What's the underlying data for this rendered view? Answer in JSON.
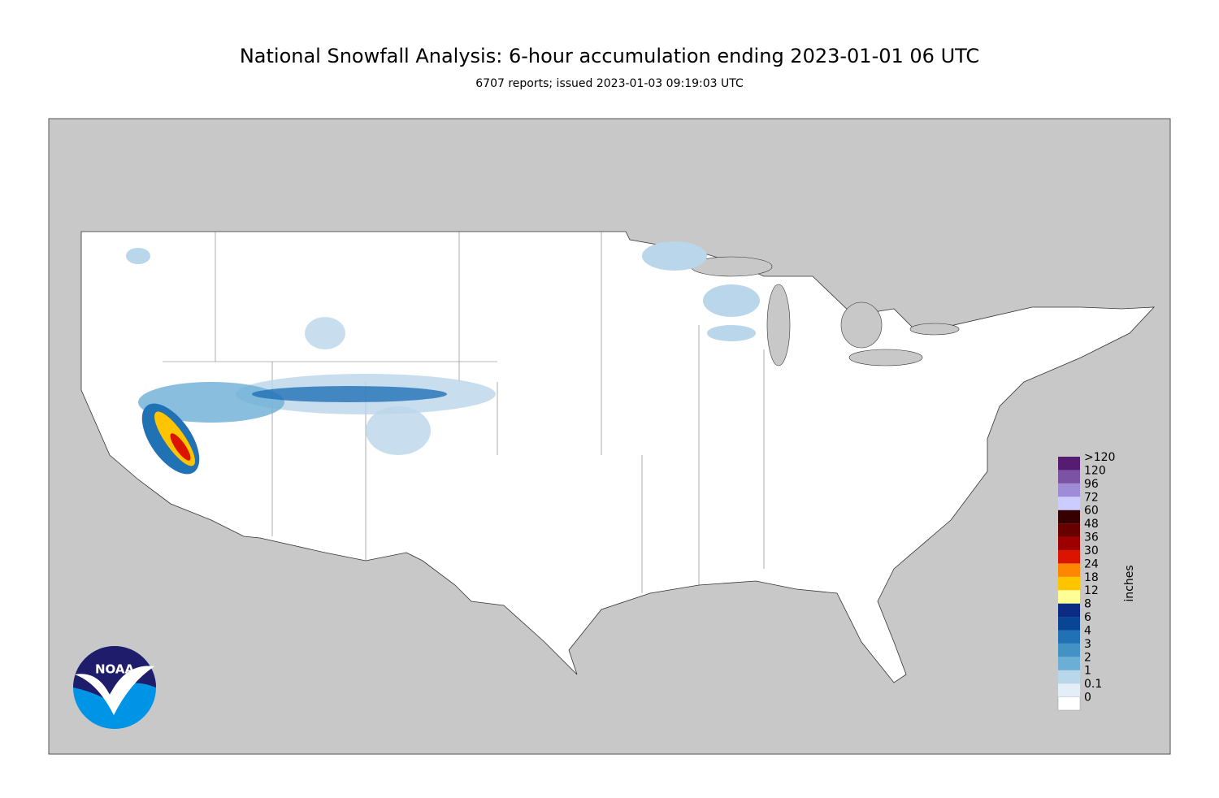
{
  "header": {
    "title": "National Snowfall Analysis: 6-hour accumulation ending 2023-01-01 06 UTC",
    "subtitle": "6707 reports; issued 2023-01-03 09:19:03 UTC"
  },
  "legend": {
    "title": "inches",
    "labels": [
      "0",
      "0.1",
      "1",
      "2",
      "3",
      "4",
      "6",
      "8",
      "12",
      "18",
      "24",
      "30",
      "36",
      "48",
      "60",
      "72",
      "96",
      "120",
      ">120"
    ],
    "colors": [
      "#ffffff",
      "#e4eef9",
      "#bad6ea",
      "#6baed6",
      "#4292c6",
      "#2171b5",
      "#084594",
      "#0c2c84",
      "#ffff96",
      "#ffc400",
      "#ff8700",
      "#db1400",
      "#9e0000",
      "#690000",
      "#360000",
      "#ccccff",
      "#9f8cd8",
      "#7c52a5",
      "#561c72",
      "#2e0033"
    ]
  },
  "logo": {
    "text": "NOAA"
  }
}
